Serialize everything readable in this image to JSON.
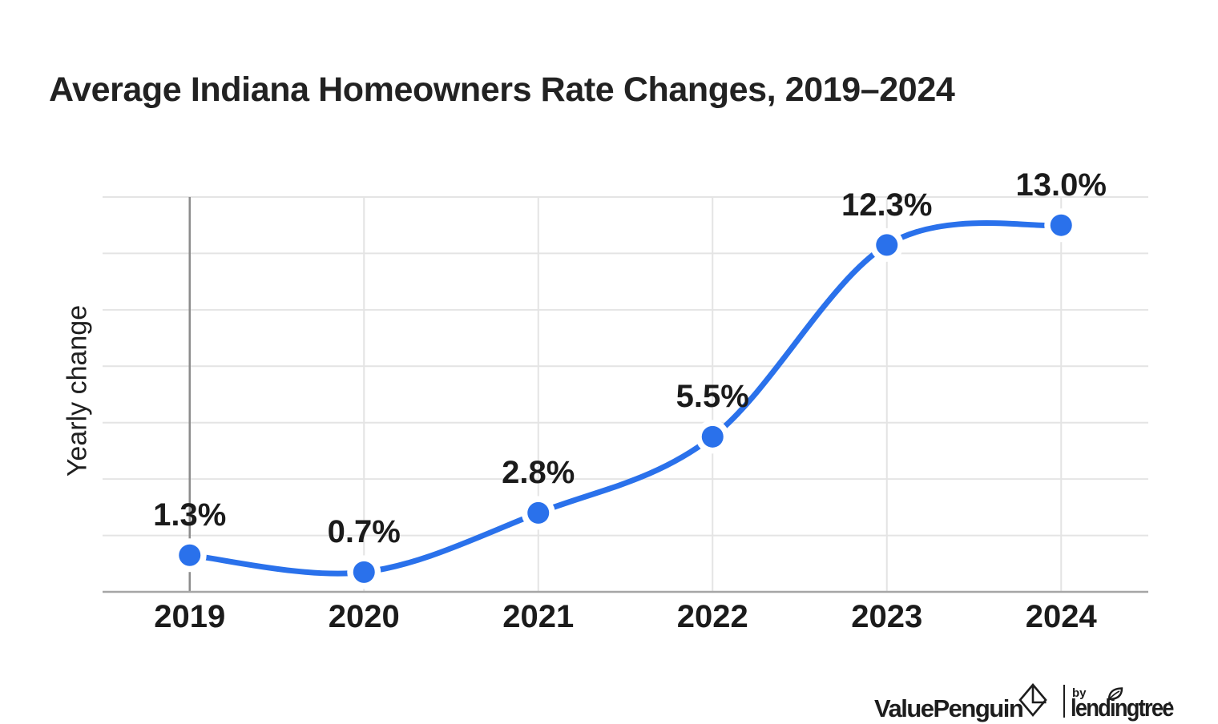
{
  "chart": {
    "title": "Average Indiana Homeowners Rate Changes, 2019–2024",
    "y_axis_label": "Yearly change"
  },
  "chart_data": {
    "type": "line",
    "title": "Average Indiana Homeowners Rate Changes, 2019–2024",
    "xlabel": "",
    "ylabel": "Yearly change",
    "categories": [
      "2019",
      "2020",
      "2021",
      "2022",
      "2023",
      "2024"
    ],
    "values": [
      1.3,
      0.7,
      2.8,
      5.5,
      12.3,
      13.0
    ],
    "point_labels": [
      "1.3%",
      "0.7%",
      "2.8%",
      "5.5%",
      "12.3%",
      "13.0%"
    ],
    "ylim": [
      0,
      14
    ],
    "y_gridline_step": 2,
    "y_tick_labels_shown": false,
    "grid": "horizontal + vertical gridlines, first vertical and baseline darker",
    "legend": "none",
    "smooth": true,
    "colors": {
      "line": "#2a71eb",
      "point": "#2a71eb",
      "grid": "#e4e4e4",
      "baseline_axis": "#a6a6a6",
      "first_vertical_axis": "#8c8c8c",
      "label_text": "#1b1b1b"
    }
  },
  "footer": {
    "brand": "ValuePenguin",
    "by": "by",
    "partner": "lendingtree",
    "trademark": "·"
  }
}
